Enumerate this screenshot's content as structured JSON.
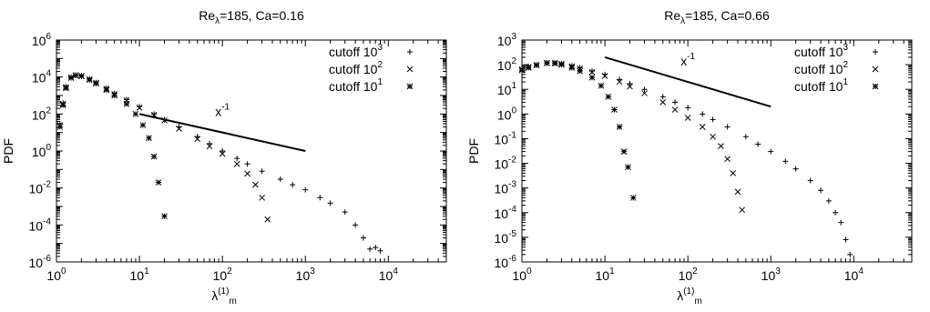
{
  "chart_data": [
    {
      "type": "scatter",
      "title": "Re",
      "title_subscript": "λ",
      "title_rest": "=185, Ca=0.16",
      "xlabel": "λ",
      "xlabel_superscript": "(1)",
      "xlabel_subscript": "m",
      "ylabel": "PDF",
      "xscale": "log",
      "yscale": "log",
      "xlim": [
        1,
        50000
      ],
      "ylim": [
        1e-06,
        1000000.0
      ],
      "x_ticks": [
        1,
        10,
        100,
        1000,
        10000
      ],
      "x_tick_labels": [
        {
          "base": "10",
          "exp": "0"
        },
        {
          "base": "10",
          "exp": "1"
        },
        {
          "base": "10",
          "exp": "2"
        },
        {
          "base": "10",
          "exp": "3"
        },
        {
          "base": "10",
          "exp": "4"
        }
      ],
      "y_ticks": [
        1e-06,
        0.0001,
        0.01,
        1,
        100,
        10000,
        1000000
      ],
      "y_tick_labels": [
        {
          "base": "10",
          "exp": "-6"
        },
        {
          "base": "10",
          "exp": "-4"
        },
        {
          "base": "10",
          "exp": "-2"
        },
        {
          "base": "10",
          "exp": "0"
        },
        {
          "base": "10",
          "exp": "2"
        },
        {
          "base": "10",
          "exp": "4"
        },
        {
          "base": "10",
          "exp": "6"
        }
      ],
      "legend_position": "top-right",
      "reference_line": {
        "label": "x",
        "label_exp": "-1",
        "x": [
          10,
          1000
        ],
        "y": [
          100,
          1
        ]
      },
      "series": [
        {
          "name": "cutoff 10",
          "name_exp": "3",
          "marker": "plus",
          "points": [
            [
              1.1,
              30
            ],
            [
              1.2,
              400
            ],
            [
              1.3,
              3000
            ],
            [
              1.5,
              10000
            ],
            [
              1.7,
              13000
            ],
            [
              2,
              12000
            ],
            [
              2.5,
              8000
            ],
            [
              3,
              5000
            ],
            [
              4,
              2500
            ],
            [
              5,
              1300
            ],
            [
              7,
              600
            ],
            [
              10,
              250
            ],
            [
              15,
              100
            ],
            [
              20,
              50
            ],
            [
              30,
              20
            ],
            [
              50,
              6
            ],
            [
              70,
              2.5
            ],
            [
              100,
              1
            ],
            [
              150,
              0.4
            ],
            [
              200,
              0.2
            ],
            [
              300,
              0.08
            ],
            [
              500,
              0.03
            ],
            [
              700,
              0.015
            ],
            [
              1000,
              0.008
            ],
            [
              1500,
              0.003
            ],
            [
              2000,
              0.0015
            ],
            [
              3000,
              0.0005
            ],
            [
              4000,
              0.0001
            ],
            [
              5000,
              2e-05
            ],
            [
              6000,
              5e-06
            ],
            [
              7000,
              6e-06
            ],
            [
              8000,
              4e-06
            ]
          ]
        },
        {
          "name": "cutoff 10",
          "name_exp": "2",
          "marker": "cross",
          "points": [
            [
              1.1,
              25
            ],
            [
              1.2,
              350
            ],
            [
              1.3,
              2800
            ],
            [
              1.5,
              9500
            ],
            [
              1.7,
              12500
            ],
            [
              2,
              11500
            ],
            [
              2.5,
              7500
            ],
            [
              3,
              4800
            ],
            [
              4,
              2300
            ],
            [
              5,
              1200
            ],
            [
              7,
              550
            ],
            [
              10,
              220
            ],
            [
              15,
              90
            ],
            [
              20,
              45
            ],
            [
              30,
              16
            ],
            [
              50,
              4.5
            ],
            [
              70,
              1.8
            ],
            [
              100,
              0.7
            ],
            [
              150,
              0.2
            ],
            [
              200,
              0.06
            ],
            [
              250,
              0.015
            ],
            [
              300,
              0.003
            ],
            [
              350,
              0.0002
            ]
          ]
        },
        {
          "name": "cutoff 10",
          "name_exp": "1",
          "marker": "star",
          "points": [
            [
              1.1,
              20
            ],
            [
              1.2,
              300
            ],
            [
              1.3,
              2500
            ],
            [
              1.5,
              9000
            ],
            [
              1.7,
              12000
            ],
            [
              2,
              11000
            ],
            [
              2.5,
              7000
            ],
            [
              3,
              4500
            ],
            [
              4,
              2000
            ],
            [
              5,
              1000
            ],
            [
              7,
              350
            ],
            [
              9,
              100
            ],
            [
              11,
              25
            ],
            [
              13,
              5
            ],
            [
              15,
              0.5
            ],
            [
              17,
              0.02
            ],
            [
              20,
              0.0003
            ]
          ]
        }
      ]
    },
    {
      "type": "scatter",
      "title": "Re",
      "title_subscript": "λ",
      "title_rest": "=185, Ca=0.66",
      "xlabel": "λ",
      "xlabel_superscript": "(1)",
      "xlabel_subscript": "m",
      "ylabel": "PDF",
      "xscale": "log",
      "yscale": "log",
      "xlim": [
        1,
        50000
      ],
      "ylim": [
        1e-06,
        1000
      ],
      "x_ticks": [
        1,
        10,
        100,
        1000,
        10000
      ],
      "x_tick_labels": [
        {
          "base": "10",
          "exp": "0"
        },
        {
          "base": "10",
          "exp": "1"
        },
        {
          "base": "10",
          "exp": "2"
        },
        {
          "base": "10",
          "exp": "3"
        },
        {
          "base": "10",
          "exp": "4"
        }
      ],
      "y_ticks": [
        1e-06,
        1e-05,
        0.0001,
        0.001,
        0.01,
        0.1,
        1,
        10,
        100,
        1000
      ],
      "y_tick_labels": [
        {
          "base": "10",
          "exp": "-6"
        },
        {
          "base": "10",
          "exp": "-5"
        },
        {
          "base": "10",
          "exp": "-4"
        },
        {
          "base": "10",
          "exp": "-3"
        },
        {
          "base": "10",
          "exp": "-2"
        },
        {
          "base": "10",
          "exp": "-1"
        },
        {
          "base": "10",
          "exp": "0"
        },
        {
          "base": "10",
          "exp": "1"
        },
        {
          "base": "10",
          "exp": "2"
        },
        {
          "base": "10",
          "exp": "3"
        }
      ],
      "legend_position": "top-right",
      "reference_line": {
        "label": "x",
        "label_exp": "-1",
        "x": [
          10,
          1000
        ],
        "y": [
          200,
          2
        ]
      },
      "series": [
        {
          "name": "cutoff 10",
          "name_exp": "3",
          "marker": "plus",
          "points": [
            [
              1,
              70
            ],
            [
              1.2,
              85
            ],
            [
              1.5,
              100
            ],
            [
              2,
              120
            ],
            [
              2.5,
              120
            ],
            [
              3,
              110
            ],
            [
              4,
              90
            ],
            [
              5,
              75
            ],
            [
              7,
              55
            ],
            [
              10,
              40
            ],
            [
              15,
              25
            ],
            [
              20,
              17
            ],
            [
              30,
              10
            ],
            [
              50,
              5
            ],
            [
              70,
              3
            ],
            [
              100,
              1.8
            ],
            [
              150,
              1
            ],
            [
              200,
              0.6
            ],
            [
              300,
              0.3
            ],
            [
              500,
              0.12
            ],
            [
              700,
              0.06
            ],
            [
              1000,
              0.03
            ],
            [
              1500,
              0.012
            ],
            [
              2000,
              0.006
            ],
            [
              3000,
              0.002
            ],
            [
              4000,
              0.0008
            ],
            [
              5000,
              0.0003
            ],
            [
              6000,
              0.0001
            ],
            [
              7000,
              4e-05
            ],
            [
              8000,
              8e-06
            ],
            [
              9000,
              2e-06
            ]
          ]
        },
        {
          "name": "cutoff 10",
          "name_exp": "2",
          "marker": "cross",
          "points": [
            [
              1,
              65
            ],
            [
              1.2,
              80
            ],
            [
              1.5,
              98
            ],
            [
              2,
              118
            ],
            [
              2.5,
              118
            ],
            [
              3,
              108
            ],
            [
              4,
              85
            ],
            [
              5,
              70
            ],
            [
              7,
              50
            ],
            [
              10,
              35
            ],
            [
              15,
              20
            ],
            [
              20,
              13
            ],
            [
              30,
              7
            ],
            [
              50,
              3
            ],
            [
              70,
              1.5
            ],
            [
              100,
              0.7
            ],
            [
              150,
              0.3
            ],
            [
              200,
              0.12
            ],
            [
              250,
              0.05
            ],
            [
              300,
              0.015
            ],
            [
              350,
              0.004
            ],
            [
              400,
              0.0007
            ],
            [
              450,
              0.00013
            ]
          ]
        },
        {
          "name": "cutoff 10",
          "name_exp": "1",
          "marker": "star",
          "points": [
            [
              1,
              60
            ],
            [
              1.2,
              75
            ],
            [
              1.5,
              95
            ],
            [
              2,
              115
            ],
            [
              2.5,
              112
            ],
            [
              3,
              100
            ],
            [
              4,
              75
            ],
            [
              5,
              55
            ],
            [
              7,
              30
            ],
            [
              9,
              14
            ],
            [
              11,
              5
            ],
            [
              13,
              1.5
            ],
            [
              15,
              0.3
            ],
            [
              17,
              0.03
            ],
            [
              19,
              0.007
            ],
            [
              22,
              0.0004
            ]
          ]
        }
      ]
    }
  ]
}
